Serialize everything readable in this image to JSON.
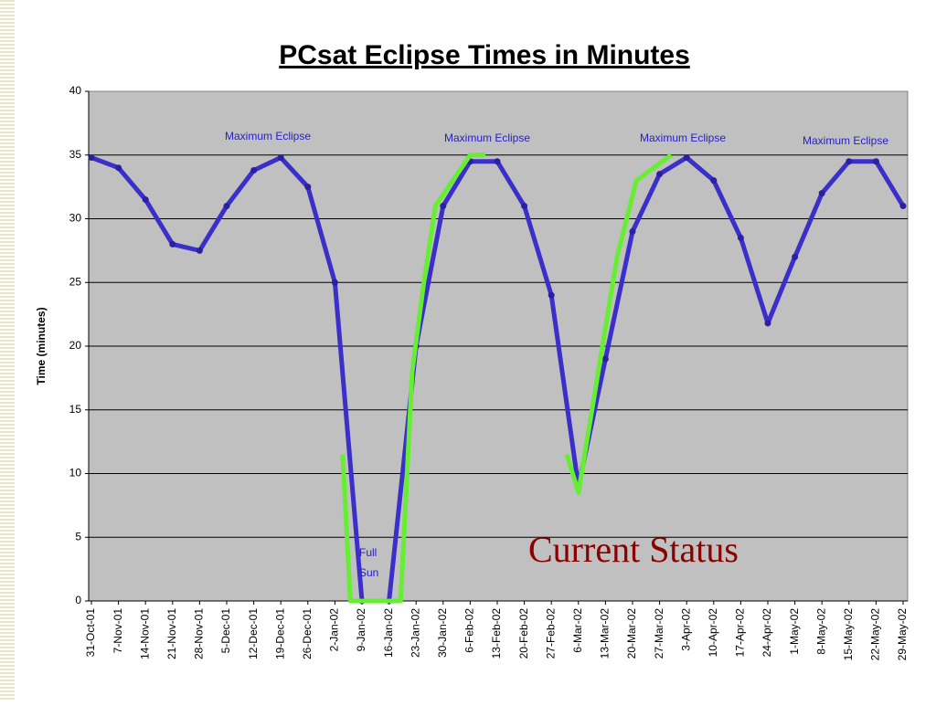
{
  "chart_data": {
    "type": "line",
    "title": "PCsat Eclipse Times in Minutes",
    "y_label": "Time (minutes)",
    "ylim": [
      0,
      40
    ],
    "yticks": [
      0,
      5,
      10,
      15,
      20,
      25,
      30,
      35,
      40
    ],
    "grid": true,
    "xticks": [
      "31-Oct-01",
      "7-Nov-01",
      "14-Nov-01",
      "21-Nov-01",
      "28-Nov-01",
      "5-Dec-01",
      "12-Dec-01",
      "19-Dec-01",
      "26-Dec-01",
      "2-Jan-02",
      "9-Jan-02",
      "16-Jan-02",
      "23-Jan-02",
      "30-Jan-02",
      "6-Feb-02",
      "13-Feb-02",
      "20-Feb-02",
      "27-Feb-02",
      "6-Mar-02",
      "13-Mar-02",
      "20-Mar-02",
      "27-Mar-02",
      "3-Apr-02",
      "10-Apr-02",
      "17-Apr-02",
      "24-Apr-02",
      "1-May-02",
      "8-May-02",
      "15-May-02",
      "22-May-02",
      "29-May-02"
    ],
    "series": [
      {
        "color": "#3a2fc8",
        "x": [
          "31-Oct-01",
          "7-Nov-01",
          "14-Nov-01",
          "21-Nov-01",
          "28-Nov-01",
          "5-Dec-01",
          "12-Dec-01",
          "19-Dec-01",
          "26-Dec-01",
          "2-Jan-02",
          "9-Jan-02",
          "16-Jan-02",
          "23-Jan-02",
          "30-Jan-02",
          "6-Feb-02",
          "13-Feb-02",
          "20-Feb-02",
          "27-Feb-02",
          "6-Mar-02",
          "13-Mar-02",
          "20-Mar-02",
          "27-Mar-02",
          "3-Apr-02",
          "10-Apr-02",
          "17-Apr-02",
          "24-Apr-02",
          "1-May-02",
          "8-May-02",
          "15-May-02",
          "22-May-02",
          "29-May-02"
        ],
        "values": [
          34.8,
          34,
          31.5,
          28,
          27.5,
          31,
          33.8,
          34.8,
          32.5,
          25,
          0,
          0,
          20,
          31,
          34.5,
          34.5,
          31,
          24,
          9,
          19,
          29,
          33.5,
          34.8,
          33,
          28.5,
          21.8,
          27,
          32,
          34.5,
          34.5,
          31
        ]
      },
      {
        "name": "Current Status",
        "color": "#66ee33",
        "x": [
          "4-Jan-02",
          "6-Jan-02",
          "19-Jan-02",
          "22-Jan-02",
          "25-Jan-02",
          "28-Jan-02",
          "6-Feb-02",
          "10-Feb-02",
          "2-Mar-02",
          "3-Mar-02",
          "6-Mar-02",
          "16-Mar-02",
          "21-Mar-02",
          "30-Mar-02"
        ],
        "values": [
          11.5,
          0,
          0,
          18,
          25,
          31,
          35,
          35,
          null,
          11.5,
          8.5,
          27,
          33,
          35
        ]
      }
    ],
    "annotations": [
      "Maximum Eclipse",
      "Maximum Eclipse",
      "Maximum Eclipse",
      "Maximum Eclipse",
      "Full",
      "Sun"
    ]
  }
}
